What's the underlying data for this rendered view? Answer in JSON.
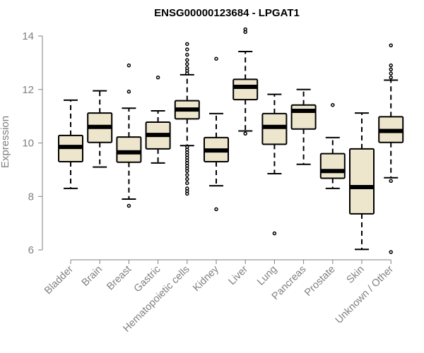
{
  "chart_data": {
    "type": "box",
    "title": "ENSG00000123684 - LPGAT1",
    "xlabel": "",
    "ylabel": "Expression",
    "ylim": [
      6,
      14
    ],
    "yticks": [
      6,
      8,
      10,
      12,
      14
    ],
    "grid": false,
    "box_fill": "#ede6cc",
    "box_stroke": "#000000",
    "axis_color": "#808080",
    "categories": [
      "Bladder",
      "Brain",
      "Breast",
      "Gastric",
      "Hematopoietic cells",
      "Kidney",
      "Liver",
      "Lung",
      "Pancreas",
      "Prostate",
      "Skin",
      "Unknown / Other"
    ],
    "boxes": [
      {
        "category": "Bladder",
        "whisker_low": 8.3,
        "q1": 9.3,
        "median": 9.85,
        "q3": 10.28,
        "whisker_high": 11.6,
        "outliers": []
      },
      {
        "category": "Brain",
        "whisker_low": 9.1,
        "q1": 10.02,
        "median": 10.6,
        "q3": 11.12,
        "whisker_high": 11.95,
        "outliers": []
      },
      {
        "category": "Breast",
        "whisker_low": 7.9,
        "q1": 9.28,
        "median": 9.65,
        "q3": 10.22,
        "whisker_high": 11.3,
        "outliers": [
          7.65,
          11.92,
          12.9
        ]
      },
      {
        "category": "Gastric",
        "whisker_low": 9.25,
        "q1": 9.78,
        "median": 10.3,
        "q3": 10.78,
        "whisker_high": 11.2,
        "outliers": [
          12.45
        ]
      },
      {
        "category": "Hematopoietic cells",
        "whisker_low": 9.9,
        "q1": 10.9,
        "median": 11.25,
        "q3": 11.58,
        "whisker_high": 12.55,
        "outliers": [
          8.1,
          8.2,
          8.3,
          8.5,
          8.65,
          8.8,
          8.95,
          9.05,
          9.15,
          9.25,
          9.35,
          9.45,
          9.55,
          9.65,
          9.75,
          9.85,
          12.6,
          12.7,
          12.8,
          12.95,
          13.1,
          13.3,
          13.5,
          13.7
        ]
      },
      {
        "category": "Kidney",
        "whisker_low": 8.4,
        "q1": 9.3,
        "median": 9.72,
        "q3": 10.2,
        "whisker_high": 11.1,
        "outliers": [
          7.52,
          13.15
        ]
      },
      {
        "category": "Liver",
        "whisker_low": 10.45,
        "q1": 11.62,
        "median": 12.1,
        "q3": 12.38,
        "whisker_high": 13.42,
        "outliers": [
          10.35,
          14.15,
          14.25
        ]
      },
      {
        "category": "Lung",
        "whisker_low": 8.85,
        "q1": 9.95,
        "median": 10.6,
        "q3": 11.1,
        "whisker_high": 11.82,
        "outliers": [
          6.62
        ]
      },
      {
        "category": "Pancreas",
        "whisker_low": 9.2,
        "q1": 10.52,
        "median": 11.2,
        "q3": 11.42,
        "whisker_high": 12.0,
        "outliers": []
      },
      {
        "category": "Prostate",
        "whisker_low": 8.3,
        "q1": 8.68,
        "median": 8.95,
        "q3": 9.6,
        "whisker_high": 10.2,
        "outliers": [
          11.42
        ]
      },
      {
        "category": "Skin",
        "whisker_low": 6.02,
        "q1": 7.35,
        "median": 8.35,
        "q3": 9.78,
        "whisker_high": 11.12,
        "outliers": []
      },
      {
        "category": "Unknown / Other",
        "whisker_low": 8.7,
        "q1": 10.02,
        "median": 10.45,
        "q3": 10.98,
        "whisker_high": 12.35,
        "outliers": [
          5.92,
          8.58,
          12.45,
          12.6,
          12.75,
          12.9,
          13.65
        ]
      }
    ]
  }
}
